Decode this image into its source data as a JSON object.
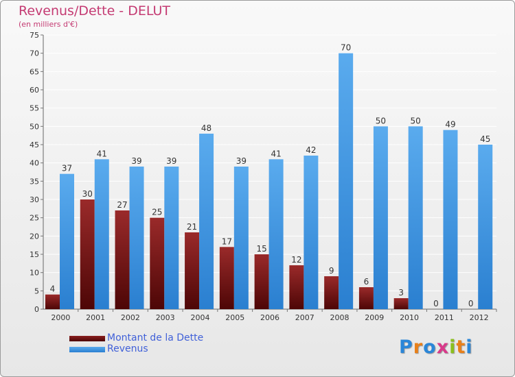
{
  "chart_data": {
    "type": "bar",
    "title": "Revenus/Dette - DELUT",
    "subtitle": "(en milliers d'€)",
    "categories": [
      "2000",
      "2001",
      "2002",
      "2003",
      "2004",
      "2005",
      "2006",
      "2007",
      "2008",
      "2009",
      "2010",
      "2011",
      "2012"
    ],
    "series": [
      {
        "name": "Montant de la Dette",
        "color": "#7a1515",
        "values": [
          4,
          30,
          27,
          25,
          21,
          17,
          15,
          12,
          9,
          6,
          3,
          0,
          0
        ]
      },
      {
        "name": "Revenus",
        "color": "#3d95df",
        "values": [
          37,
          41,
          39,
          39,
          48,
          39,
          41,
          42,
          70,
          50,
          50,
          49,
          45
        ]
      }
    ],
    "ylim": [
      0,
      75
    ],
    "yticks": [
      0,
      5,
      10,
      15,
      20,
      25,
      30,
      35,
      40,
      45,
      50,
      55,
      60,
      65,
      70,
      75
    ],
    "grid": true,
    "legend_position": "bottom-left"
  },
  "logo": {
    "letters": [
      "P",
      "r",
      "o",
      "x",
      "i",
      "t",
      "i"
    ],
    "colors": [
      "#2a86d8",
      "#e8801a",
      "#2a86d8",
      "#d83a8a",
      "#8bbf1e",
      "#e8801a",
      "#2a86d8"
    ]
  }
}
